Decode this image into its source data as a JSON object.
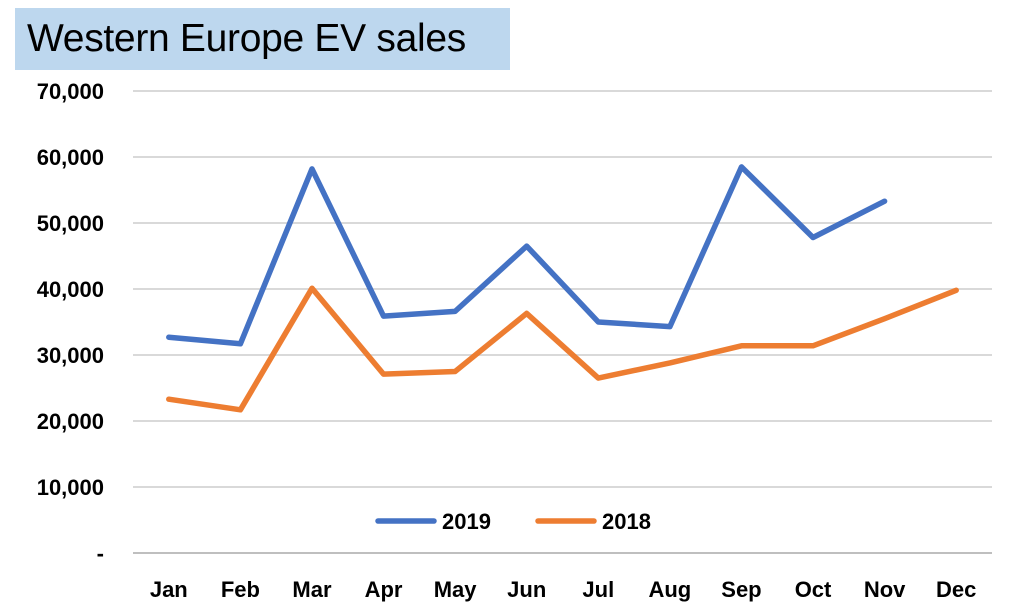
{
  "chart_data": {
    "type": "line",
    "title": "Western Europe EV sales",
    "xlabel": "",
    "ylabel": "",
    "categories": [
      "Jan",
      "Feb",
      "Mar",
      "Apr",
      "May",
      "Jun",
      "Jul",
      "Aug",
      "Sep",
      "Oct",
      "Nov",
      "Dec"
    ],
    "series": [
      {
        "name": "2019",
        "color": "#4472c4",
        "values": [
          32700,
          31700,
          58200,
          35900,
          36600,
          46500,
          35000,
          34300,
          58500,
          47800,
          53300,
          null
        ]
      },
      {
        "name": "2018",
        "color": "#ed7d31",
        "values": [
          23300,
          21700,
          40100,
          27100,
          27500,
          36300,
          26500,
          28800,
          31400,
          31400,
          35500,
          39800
        ]
      }
    ],
    "ylim": [
      0,
      70000
    ],
    "yticks": [
      0,
      10000,
      20000,
      30000,
      40000,
      50000,
      60000,
      70000
    ],
    "ytick_labels": [
      "-",
      "10,000",
      "20,000",
      "30,000",
      "40,000",
      "50,000",
      "60,000",
      "70,000"
    ],
    "grid": true,
    "legend_placement": "bottom-center"
  }
}
